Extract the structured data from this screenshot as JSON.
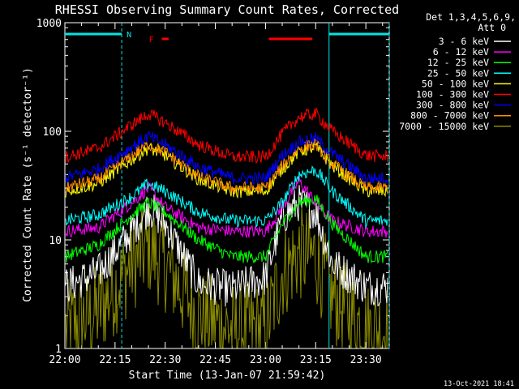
{
  "chart_data": {
    "type": "line",
    "title": "RHESSI Observing Summary Count Rates, Corrected",
    "xlabel": "Start Time (13-Jan-07 21:59:42)",
    "ylabel": "Corrected Count Rate (s⁻¹ detector⁻¹)",
    "y_scale": "log",
    "ylim": [
      1,
      1000
    ],
    "xlim": [
      "22:00",
      "23:37"
    ],
    "x_tick_labels": [
      "22:00",
      "22:15",
      "22:30",
      "22:45",
      "23:00",
      "23:15",
      "23:30"
    ],
    "y_tick_labels": [
      "1",
      "10",
      "100",
      "1000"
    ],
    "detector_info": [
      "Det 1,3,4,5,6,9,",
      "Att 0"
    ],
    "timestamp": "13-Oct-2021 18:41",
    "grid": false,
    "legend_position": "top-right outside",
    "flag_bars": [
      {
        "label": "N",
        "color": "#00e5e5",
        "segments": [
          [
            "22:00",
            "22:17"
          ],
          [
            "23:19",
            "23:37"
          ]
        ]
      },
      {
        "label": "F",
        "color": "#ff0000",
        "segments": [
          [
            "22:29",
            "22:31"
          ],
          [
            "23:01",
            "23:14"
          ]
        ]
      }
    ],
    "night_boundaries": [
      "22:17",
      "23:19",
      "23:37"
    ],
    "series": [
      {
        "name": "3 - 6 keV",
        "color": "#ffffff",
        "x": [
          "22:00",
          "22:10",
          "22:20",
          "22:25",
          "22:30",
          "22:40",
          "22:50",
          "23:00",
          "23:05",
          "23:10",
          "23:15",
          "23:20",
          "23:30",
          "23:37"
        ],
        "values": [
          3.7,
          5,
          12,
          20,
          14,
          4,
          3.5,
          4.5,
          16,
          22,
          18,
          6,
          3.7,
          3.7
        ]
      },
      {
        "name": "6 - 12 keV",
        "color": "#ff00ff",
        "x": [
          "22:00",
          "22:10",
          "22:20",
          "22:25",
          "22:30",
          "22:40",
          "22:50",
          "23:00",
          "23:05",
          "23:10",
          "23:15",
          "23:20",
          "23:30",
          "23:37"
        ],
        "values": [
          12,
          13,
          22,
          30,
          20,
          13,
          12,
          12,
          20,
          35,
          22,
          15,
          12,
          12
        ]
      },
      {
        "name": "12 - 25 keV",
        "color": "#00ff00",
        "x": [
          "22:00",
          "22:10",
          "22:20",
          "22:25",
          "22:30",
          "22:40",
          "22:50",
          "23:00",
          "23:05",
          "23:10",
          "23:15",
          "23:20",
          "23:30",
          "23:37"
        ],
        "values": [
          7,
          9,
          17,
          22,
          18,
          10,
          7,
          7,
          14,
          22,
          24,
          14,
          7,
          7
        ]
      },
      {
        "name": "25 - 50 keV",
        "color": "#00ffff",
        "x": [
          "22:00",
          "22:10",
          "22:20",
          "22:25",
          "22:30",
          "22:40",
          "22:50",
          "23:00",
          "23:05",
          "23:10",
          "23:15",
          "23:20",
          "23:30",
          "23:37"
        ],
        "values": [
          15,
          17,
          25,
          33,
          28,
          18,
          15,
          15,
          22,
          40,
          44,
          28,
          15,
          15
        ]
      },
      {
        "name": "50 - 100 keV",
        "color": "#ffff00",
        "x": [
          "22:00",
          "22:10",
          "22:20",
          "22:25",
          "22:30",
          "22:40",
          "22:50",
          "23:00",
          "23:05",
          "23:10",
          "23:15",
          "23:20",
          "23:30",
          "23:37"
        ],
        "values": [
          28,
          33,
          55,
          70,
          60,
          36,
          28,
          28,
          45,
          65,
          72,
          48,
          28,
          28
        ]
      },
      {
        "name": "100 - 300 keV",
        "color": "#ff0000",
        "x": [
          "22:00",
          "22:10",
          "22:20",
          "22:25",
          "22:30",
          "22:40",
          "22:50",
          "23:00",
          "23:05",
          "23:10",
          "23:15",
          "23:20",
          "23:30",
          "23:37"
        ],
        "values": [
          58,
          70,
          115,
          145,
          120,
          75,
          58,
          58,
          95,
          135,
          145,
          100,
          60,
          58
        ]
      },
      {
        "name": "300 - 800 keV",
        "color": "#0000ff",
        "x": [
          "22:00",
          "22:10",
          "22:20",
          "22:25",
          "22:30",
          "22:40",
          "22:50",
          "23:00",
          "23:05",
          "23:10",
          "23:15",
          "23:20",
          "23:30",
          "23:37"
        ],
        "values": [
          37,
          45,
          72,
          90,
          75,
          47,
          37,
          37,
          60,
          80,
          86,
          62,
          37,
          37
        ]
      },
      {
        "name": "800 - 7000 keV",
        "color": "#ff8c00",
        "x": [
          "22:00",
          "22:10",
          "22:20",
          "22:25",
          "22:30",
          "22:40",
          "22:50",
          "23:00",
          "23:05",
          "23:10",
          "23:15",
          "23:20",
          "23:30",
          "23:37"
        ],
        "values": [
          30,
          36,
          60,
          76,
          64,
          38,
          30,
          30,
          48,
          70,
          76,
          50,
          30,
          30
        ]
      },
      {
        "name": "7000 - 15000 keV",
        "color": "#8b8b00",
        "x": [
          "22:00",
          "22:10",
          "22:20",
          "22:25",
          "22:30",
          "22:40",
          "22:50",
          "23:00",
          "23:05",
          "23:10",
          "23:15",
          "23:20",
          "23:30",
          "23:37"
        ],
        "values": [
          1.5,
          2.2,
          6,
          8.5,
          6,
          2,
          1.5,
          1.5,
          5,
          7.5,
          7,
          3,
          1.5,
          1.5
        ]
      }
    ]
  }
}
